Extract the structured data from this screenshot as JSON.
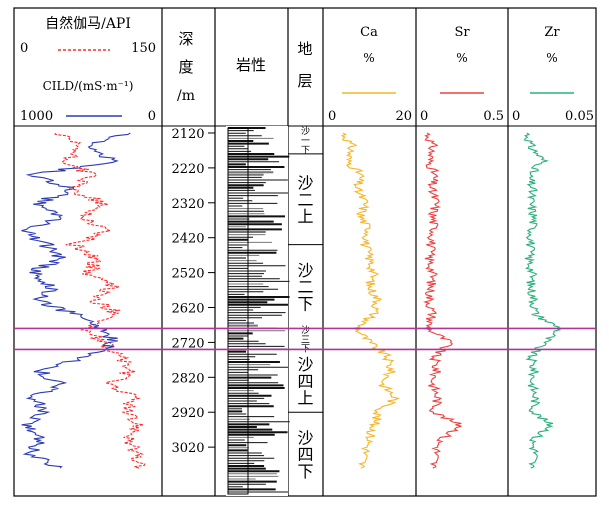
{
  "panels": {
    "gr": {
      "title": "自然伽马/API",
      "gr_min": "0",
      "gr_max": "150",
      "cild_label": "CILD/(mS·m⁻¹)",
      "cild_left": "1000",
      "cild_right": "0"
    },
    "depth": {
      "title_line1": "深",
      "title_line2": "度",
      "title_line3": "/m"
    },
    "lith": {
      "title": "岩性"
    },
    "strata": {
      "title_line1": "地",
      "title_line2": "层"
    },
    "ca": {
      "title": "Ca",
      "unit": "%",
      "min": "0",
      "max": "20"
    },
    "sr": {
      "title": "Sr",
      "unit": "%",
      "min": "0",
      "max": "0.5"
    },
    "zr": {
      "title": "Zr",
      "unit": "%",
      "min": "0",
      "max": "0.05"
    }
  },
  "colors": {
    "gr": "#ff2a2a",
    "cild": "#2b3bb5",
    "ca": "#f6b527",
    "sr": "#ee4040",
    "zr": "#2bb07b",
    "marker": "#b0359a",
    "axis": "#000000"
  },
  "chart_data": {
    "type": "line",
    "y_axis": {
      "label": "深度/m",
      "ylim": [
        2100,
        3160
      ],
      "ticks": [
        2120,
        2220,
        2320,
        2420,
        2520,
        2620,
        2720,
        2820,
        2920,
        3020
      ],
      "inverted": true
    },
    "strata": [
      {
        "label": "沙一下",
        "top": 2100,
        "bottom": 2180
      },
      {
        "label": "沙二上",
        "top": 2180,
        "bottom": 2440
      },
      {
        "label": "沙二下",
        "top": 2440,
        "bottom": 2680
      },
      {
        "label": "沙三下",
        "top": 2680,
        "bottom": 2740
      },
      {
        "label": "沙四上",
        "top": 2740,
        "bottom": 2920
      },
      {
        "label": "沙四下",
        "top": 2920,
        "bottom": 3160
      }
    ],
    "highlight_interval": {
      "top": 2680,
      "bottom": 2740
    },
    "series": [
      {
        "name": "自然伽马",
        "unit": "API",
        "xlim": [
          0,
          150
        ],
        "depth": [
          2120,
          2160,
          2200,
          2240,
          2280,
          2320,
          2360,
          2400,
          2440,
          2480,
          2520,
          2560,
          2600,
          2640,
          2680,
          2720,
          2760,
          2800,
          2840,
          2880,
          2920,
          2960,
          3000,
          3040,
          3080
        ],
        "values": [
          40,
          65,
          50,
          80,
          55,
          90,
          70,
          95,
          60,
          85,
          75,
          100,
          80,
          110,
          70,
          90,
          110,
          120,
          100,
          125,
          115,
          130,
          120,
          125,
          130
        ]
      },
      {
        "name": "CILD",
        "unit": "mS·m⁻¹",
        "xlim": [
          1000,
          0
        ],
        "depth": [
          2120,
          2160,
          2200,
          2240,
          2280,
          2320,
          2360,
          2400,
          2440,
          2480,
          2520,
          2560,
          2600,
          2640,
          2680,
          2720,
          2760,
          2800,
          2840,
          2880,
          2920,
          2960,
          3000,
          3040,
          3080
        ],
        "values": [
          200,
          500,
          300,
          900,
          600,
          850,
          700,
          950,
          800,
          700,
          900,
          750,
          850,
          600,
          400,
          300,
          500,
          850,
          700,
          900,
          800,
          950,
          850,
          900,
          700
        ]
      },
      {
        "name": "Ca",
        "unit": "%",
        "xlim": [
          0,
          20
        ],
        "depth": [
          2120,
          2160,
          2200,
          2240,
          2280,
          2320,
          2360,
          2400,
          2440,
          2480,
          2520,
          2560,
          2600,
          2640,
          2680,
          2720,
          2760,
          2800,
          2840,
          2880,
          2920,
          2960,
          3000,
          3040,
          3080
        ],
        "values": [
          4,
          6,
          5,
          8,
          7,
          9,
          8,
          10,
          9,
          10,
          11,
          10,
          12,
          11,
          7,
          10,
          14,
          15,
          13,
          16,
          12,
          11,
          10,
          9,
          8
        ]
      },
      {
        "name": "Sr",
        "unit": "%",
        "xlim": [
          0,
          0.5
        ],
        "depth": [
          2120,
          2160,
          2200,
          2240,
          2280,
          2320,
          2360,
          2400,
          2440,
          2480,
          2520,
          2560,
          2600,
          2640,
          2680,
          2720,
          2760,
          2800,
          2840,
          2880,
          2920,
          2960,
          3000,
          3040,
          3080
        ],
        "values": [
          0.05,
          0.08,
          0.06,
          0.09,
          0.07,
          0.1,
          0.08,
          0.09,
          0.07,
          0.06,
          0.08,
          0.07,
          0.06,
          0.08,
          0.05,
          0.18,
          0.09,
          0.1,
          0.08,
          0.11,
          0.09,
          0.25,
          0.12,
          0.1,
          0.08
        ]
      },
      {
        "name": "Zr",
        "unit": "%",
        "xlim": [
          0,
          0.05
        ],
        "depth": [
          2120,
          2160,
          2200,
          2240,
          2280,
          2320,
          2360,
          2400,
          2440,
          2480,
          2520,
          2560,
          2600,
          2640,
          2680,
          2720,
          2760,
          2800,
          2840,
          2880,
          2920,
          2960,
          3000,
          3040,
          3080
        ],
        "values": [
          0.01,
          0.012,
          0.02,
          0.011,
          0.013,
          0.012,
          0.014,
          0.013,
          0.012,
          0.011,
          0.013,
          0.012,
          0.014,
          0.015,
          0.03,
          0.02,
          0.012,
          0.014,
          0.013,
          0.015,
          0.014,
          0.025,
          0.013,
          0.015,
          0.012
        ]
      }
    ]
  }
}
